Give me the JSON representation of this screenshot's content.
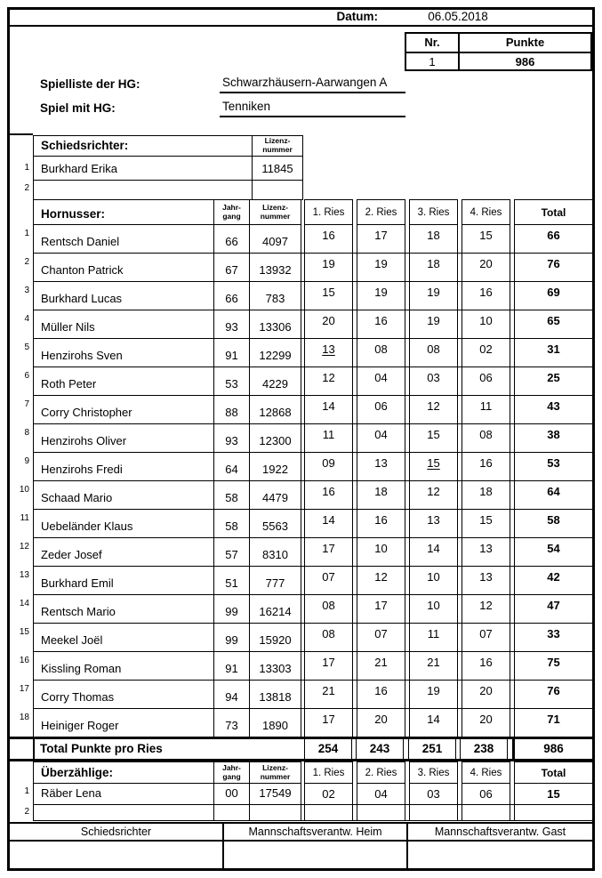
{
  "header": {
    "datum_label": "Datum:",
    "datum_value": "06.05.2018"
  },
  "score_box": {
    "nr_label": "Nr.",
    "punkte_label": "Punkte",
    "nr_value": "1",
    "punkte_value": "986"
  },
  "game_info": {
    "spielliste_label": "Spielliste der HG:",
    "spielliste_value": "Schwarzhäusern-Aarwangen A",
    "spiel_label": "Spiel mit HG:",
    "spiel_value": "Tenniken"
  },
  "referees": {
    "title": "Schiedsrichter:",
    "lizenz_header": "Lizenz-\nnummer",
    "rows": [
      {
        "nr": "1",
        "name": "Burkhard Erika",
        "lizenz": "11845"
      },
      {
        "nr": "2",
        "name": "",
        "lizenz": ""
      }
    ]
  },
  "players_table": {
    "title": "Hornusser:",
    "jahrgang_header": "Jahr-\ngang",
    "lizenz_header": "Lizenz-\nnummer",
    "ries_headers": [
      "1. Ries",
      "2. Ries",
      "3. Ries",
      "4. Ries"
    ],
    "total_header": "Total",
    "rows": [
      {
        "nr": "1",
        "name": "Rentsch Daniel",
        "jahrgang": "66",
        "lizenz": "4097",
        "ries": [
          "16",
          "17",
          "18",
          "15"
        ],
        "total": "66",
        "underline": []
      },
      {
        "nr": "2",
        "name": "Chanton Patrick",
        "jahrgang": "67",
        "lizenz": "13932",
        "ries": [
          "19",
          "19",
          "18",
          "20"
        ],
        "total": "76",
        "underline": []
      },
      {
        "nr": "3",
        "name": "Burkhard Lucas",
        "jahrgang": "66",
        "lizenz": "783",
        "ries": [
          "15",
          "19",
          "19",
          "16"
        ],
        "total": "69",
        "underline": []
      },
      {
        "nr": "4",
        "name": "Müller Nils",
        "jahrgang": "93",
        "lizenz": "13306",
        "ries": [
          "20",
          "16",
          "19",
          "10"
        ],
        "total": "65",
        "underline": []
      },
      {
        "nr": "5",
        "name": "Henzirohs Sven",
        "jahrgang": "91",
        "lizenz": "12299",
        "ries": [
          "13",
          "08",
          "08",
          "02"
        ],
        "total": "31",
        "underline": [
          0
        ]
      },
      {
        "nr": "6",
        "name": "Roth Peter",
        "jahrgang": "53",
        "lizenz": "4229",
        "ries": [
          "12",
          "04",
          "03",
          "06"
        ],
        "total": "25",
        "underline": []
      },
      {
        "nr": "7",
        "name": "Corry Christopher",
        "jahrgang": "88",
        "lizenz": "12868",
        "ries": [
          "14",
          "06",
          "12",
          "11"
        ],
        "total": "43",
        "underline": []
      },
      {
        "nr": "8",
        "name": "Henzirohs Oliver",
        "jahrgang": "93",
        "lizenz": "12300",
        "ries": [
          "11",
          "04",
          "15",
          "08"
        ],
        "total": "38",
        "underline": []
      },
      {
        "nr": "9",
        "name": "Henzirohs Fredi",
        "jahrgang": "64",
        "lizenz": "1922",
        "ries": [
          "09",
          "13",
          "15",
          "16"
        ],
        "total": "53",
        "underline": [
          2
        ]
      },
      {
        "nr": "10",
        "name": "Schaad Mario",
        "jahrgang": "58",
        "lizenz": "4479",
        "ries": [
          "16",
          "18",
          "12",
          "18"
        ],
        "total": "64",
        "underline": []
      },
      {
        "nr": "11",
        "name": "Uebeländer Klaus",
        "jahrgang": "58",
        "lizenz": "5563",
        "ries": [
          "14",
          "16",
          "13",
          "15"
        ],
        "total": "58",
        "underline": []
      },
      {
        "nr": "12",
        "name": "Zeder Josef",
        "jahrgang": "57",
        "lizenz": "8310",
        "ries": [
          "17",
          "10",
          "14",
          "13"
        ],
        "total": "54",
        "underline": []
      },
      {
        "nr": "13",
        "name": "Burkhard Emil",
        "jahrgang": "51",
        "lizenz": "777",
        "ries": [
          "07",
          "12",
          "10",
          "13"
        ],
        "total": "42",
        "underline": []
      },
      {
        "nr": "14",
        "name": "Rentsch Mario",
        "jahrgang": "99",
        "lizenz": "16214",
        "ries": [
          "08",
          "17",
          "10",
          "12"
        ],
        "total": "47",
        "underline": []
      },
      {
        "nr": "15",
        "name": "Meekel Joël",
        "jahrgang": "99",
        "lizenz": "15920",
        "ries": [
          "08",
          "07",
          "11",
          "07"
        ],
        "total": "33",
        "underline": []
      },
      {
        "nr": "16",
        "name": "Kissling Roman",
        "jahrgang": "91",
        "lizenz": "13303",
        "ries": [
          "17",
          "21",
          "21",
          "16"
        ],
        "total": "75",
        "underline": []
      },
      {
        "nr": "17",
        "name": "Corry Thomas",
        "jahrgang": "94",
        "lizenz": "13818",
        "ries": [
          "21",
          "16",
          "19",
          "20"
        ],
        "total": "76",
        "underline": []
      },
      {
        "nr": "18",
        "name": "Heiniger Roger",
        "jahrgang": "73",
        "lizenz": "1890",
        "ries": [
          "17",
          "20",
          "14",
          "20"
        ],
        "total": "71",
        "underline": []
      }
    ]
  },
  "total_row": {
    "label": "Total Punkte pro Ries",
    "values": [
      "254",
      "243",
      "251",
      "238"
    ],
    "grand_total": "986"
  },
  "extras_table": {
    "title": "Überzählige:",
    "jahrgang_header": "Jahr-\ngang",
    "lizenz_header": "Lizenz-\nnummer",
    "ries_headers": [
      "1. Ries",
      "2. Ries",
      "3. Ries",
      "4. Ries"
    ],
    "total_header": "Total",
    "rows": [
      {
        "nr": "1",
        "name": "Räber Lena",
        "jahrgang": "00",
        "lizenz": "17549",
        "ries": [
          "02",
          "04",
          "03",
          "06"
        ],
        "total": "15",
        "underline": []
      },
      {
        "nr": "2",
        "name": "",
        "jahrgang": "",
        "lizenz": "",
        "ries": [
          "",
          "",
          "",
          ""
        ],
        "total": "",
        "underline": []
      }
    ]
  },
  "signatures": {
    "labels": [
      "Schiedsrichter",
      "Mannschaftsverantw. Heim",
      "Mannschaftsverantw. Gast"
    ]
  }
}
